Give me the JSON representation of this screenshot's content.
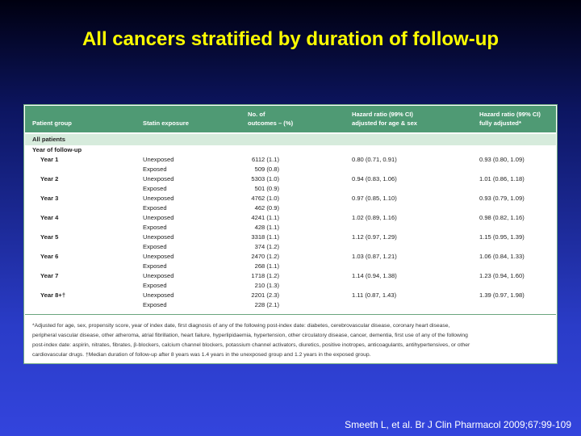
{
  "title": "All cancers stratified by duration of follow-up",
  "table": {
    "headers": [
      [
        "Patient group"
      ],
      [
        "Statin exposure"
      ],
      [
        "No. of",
        "outcomes – (%)"
      ],
      [
        "Hazard ratio (99% CI)",
        "adjusted for age & sex"
      ],
      [
        "Hazard ratio (99% CI)",
        "fully adjusted*"
      ]
    ],
    "section": "All patients",
    "subsection": "Year of follow-up",
    "groups": [
      {
        "label": "Year 1",
        "rows": [
          [
            "Unexposed",
            "6112 (1.1)",
            "0.80 (0.71, 0.91)",
            "0.93 (0.80, 1.09)"
          ],
          [
            "Exposed",
            "509 (0.8)"
          ]
        ]
      },
      {
        "label": "Year 2",
        "rows": [
          [
            "Unexposed",
            "5303 (1.0)",
            "0.94 (0.83, 1.06)",
            "1.01 (0.86, 1.18)"
          ],
          [
            "Exposed",
            "501 (0.9)"
          ]
        ]
      },
      {
        "label": "Year 3",
        "rows": [
          [
            "Unexposed",
            "4762 (1.0)",
            "0.97 (0.85, 1.10)",
            "0.93 (0.79, 1.09)"
          ],
          [
            "Exposed",
            "462 (0.9)"
          ]
        ]
      },
      {
        "label": "Year 4",
        "rows": [
          [
            "Unexposed",
            "4241 (1.1)",
            "1.02 (0.89, 1.16)",
            "0.98 (0.82, 1.16)"
          ],
          [
            "Exposed",
            "428 (1.1)"
          ]
        ]
      },
      {
        "label": "Year 5",
        "rows": [
          [
            "Unexposed",
            "3318 (1.1)",
            "1.12 (0.97, 1.29)",
            "1.15 (0.95, 1.39)"
          ],
          [
            "Exposed",
            "374 (1.2)"
          ]
        ]
      },
      {
        "label": "Year 6",
        "rows": [
          [
            "Unexposed",
            "2470 (1.2)",
            "1.03 (0.87, 1.21)",
            "1.06 (0.84, 1.33)"
          ],
          [
            "Exposed",
            "268 (1.1)"
          ]
        ]
      },
      {
        "label": "Year 7",
        "rows": [
          [
            "Unexposed",
            "1718 (1.2)",
            "1.14 (0.94, 1.38)",
            "1.23 (0.94, 1.60)"
          ],
          [
            "Exposed",
            "210 (1.3)"
          ]
        ]
      },
      {
        "label": "Year 8+†",
        "rows": [
          [
            "Unexposed",
            "2201 (2.3)",
            "1.11 (0.87, 1.43)",
            "1.39 (0.97, 1.98)"
          ],
          [
            "Exposed",
            "228 (2.1)"
          ]
        ]
      }
    ],
    "footnote": [
      "*Adjusted for age, sex, propensity score, year of index date, first diagnosis of any of the following post-index date: diabetes, cerebrovascular disease, coronary heart disease,",
      "peripheral vascular disease, other atheroma, atrial fibrillation, heart failure, hyperlipidaemia, hypertension, other circulatory disease, cancer, dementia, first use of any of the following",
      "post-index date: aspirin, nitrates, fibrates, β-blockers, calcium channel blockers, potassium channel activators, diuretics, positive inotropes, anticoagulants, antihypertensives, or other",
      "cardiovascular drugs. †Median duration of follow-up after 8 years was 1.4 years in the unexposed group and 1.2 years in the exposed group."
    ]
  },
  "citation": "Smeeth L, et al. Br J Clin Pharmacol 2009;67:99-109"
}
